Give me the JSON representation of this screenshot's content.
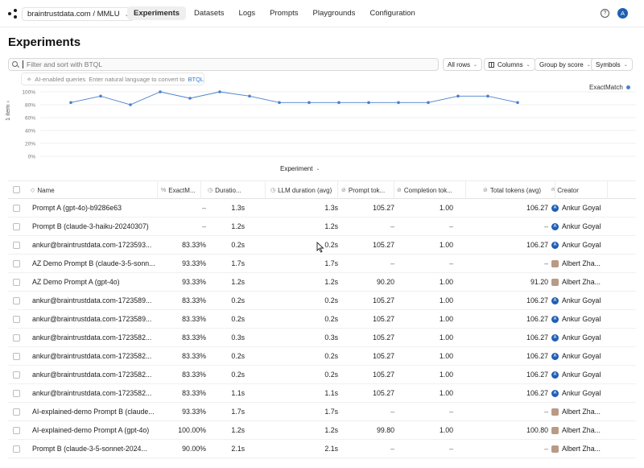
{
  "nav": {
    "org_label": "braintrustdata.com / MMLU",
    "tabs": [
      {
        "label": "Experiments",
        "active": true
      },
      {
        "label": "Datasets",
        "active": false
      },
      {
        "label": "Logs",
        "active": false
      },
      {
        "label": "Prompts",
        "active": false
      },
      {
        "label": "Playgrounds",
        "active": false
      },
      {
        "label": "Configuration",
        "active": false
      }
    ],
    "help_icon": "?",
    "avatar_initial": "A"
  },
  "page_title": "Experiments",
  "search": {
    "placeholder": "Filter and sort with BTQL",
    "hint_prefix": "AI-enabled queries",
    "hint_text": "Enter natural language to convert to",
    "hint_link": "BTQL"
  },
  "toolbar": {
    "all_rows": "All rows",
    "columns": "Columns",
    "group_by": "Group by score",
    "symbols": "Symbols"
  },
  "chart": {
    "y_axis_label": "1 item",
    "legend": "ExactMatch",
    "x_selector": "Experiment",
    "accent": "#4a80c8"
  },
  "chart_data": {
    "type": "line",
    "series": [
      {
        "name": "ExactMatch",
        "values": [
          83.33,
          93.33,
          80.0,
          100.0,
          90.0,
          100.0,
          93.33,
          83.33,
          83.33,
          83.33,
          83.33,
          83.33,
          83.33,
          93.33,
          93.33,
          83.33
        ]
      }
    ],
    "y_ticks": [
      "0%",
      "20%",
      "40%",
      "60%",
      "80%",
      "100%"
    ],
    "ylim": [
      0,
      100
    ]
  },
  "table": {
    "columns": [
      {
        "label": "Name",
        "icon": "tag-icon"
      },
      {
        "label": "ExactM...",
        "icon": "percent-icon"
      },
      {
        "label": "Duratio...",
        "icon": "clock-icon"
      },
      {
        "label": "LLM duration (avg)",
        "icon": "clock-icon"
      },
      {
        "label": "Prompt tok...",
        "icon": "token-icon"
      },
      {
        "label": "Completion tok...",
        "icon": "token-icon"
      },
      {
        "label": "Total tokens (avg)",
        "icon": "token-icon"
      },
      {
        "label": "Creator",
        "icon": "user-icon"
      }
    ],
    "rows": [
      {
        "name": "Prompt A (gpt-4o)-b9286e63",
        "exact": "–",
        "duration": "1.3s",
        "llm": "1.3s",
        "prompt": "105.27",
        "completion": "1.00",
        "total": "106.27",
        "creator": "Ankur Goyal",
        "avatar": "A",
        "photo": false
      },
      {
        "name": "Prompt B (claude-3-haiku-20240307)",
        "exact": "–",
        "duration": "1.2s",
        "llm": "1.2s",
        "prompt": "–",
        "completion": "–",
        "total": "–",
        "creator": "Ankur Goyal",
        "avatar": "A",
        "photo": false
      },
      {
        "name": "ankur@braintrustdata.com-1723593...",
        "exact": "83.33%",
        "duration": "0.2s",
        "llm": "0.2s",
        "prompt": "105.27",
        "completion": "1.00",
        "total": "106.27",
        "creator": "Ankur Goyal",
        "avatar": "A",
        "photo": false
      },
      {
        "name": "AZ Demo Prompt B (claude-3-5-sonn...",
        "exact": "93.33%",
        "duration": "1.7s",
        "llm": "1.7s",
        "prompt": "–",
        "completion": "–",
        "total": "–",
        "creator": "Albert Zha...",
        "avatar": "",
        "photo": true
      },
      {
        "name": "AZ Demo Prompt A (gpt-4o)",
        "exact": "93.33%",
        "duration": "1.2s",
        "llm": "1.2s",
        "prompt": "90.20",
        "completion": "1.00",
        "total": "91.20",
        "creator": "Albert Zha...",
        "avatar": "",
        "photo": true
      },
      {
        "name": "ankur@braintrustdata.com-1723589...",
        "exact": "83.33%",
        "duration": "0.2s",
        "llm": "0.2s",
        "prompt": "105.27",
        "completion": "1.00",
        "total": "106.27",
        "creator": "Ankur Goyal",
        "avatar": "A",
        "photo": false
      },
      {
        "name": "ankur@braintrustdata.com-1723589...",
        "exact": "83.33%",
        "duration": "0.2s",
        "llm": "0.2s",
        "prompt": "105.27",
        "completion": "1.00",
        "total": "106.27",
        "creator": "Ankur Goyal",
        "avatar": "A",
        "photo": false
      },
      {
        "name": "ankur@braintrustdata.com-1723582...",
        "exact": "83.33%",
        "duration": "0.3s",
        "llm": "0.3s",
        "prompt": "105.27",
        "completion": "1.00",
        "total": "106.27",
        "creator": "Ankur Goyal",
        "avatar": "A",
        "photo": false
      },
      {
        "name": "ankur@braintrustdata.com-1723582...",
        "exact": "83.33%",
        "duration": "0.2s",
        "llm": "0.2s",
        "prompt": "105.27",
        "completion": "1.00",
        "total": "106.27",
        "creator": "Ankur Goyal",
        "avatar": "A",
        "photo": false
      },
      {
        "name": "ankur@braintrustdata.com-1723582...",
        "exact": "83.33%",
        "duration": "0.2s",
        "llm": "0.2s",
        "prompt": "105.27",
        "completion": "1.00",
        "total": "106.27",
        "creator": "Ankur Goyal",
        "avatar": "A",
        "photo": false
      },
      {
        "name": "ankur@braintrustdata.com-1723582...",
        "exact": "83.33%",
        "duration": "1.1s",
        "llm": "1.1s",
        "prompt": "105.27",
        "completion": "1.00",
        "total": "106.27",
        "creator": "Ankur Goyal",
        "avatar": "A",
        "photo": false
      },
      {
        "name": "AI-explained-demo Prompt B (claude...",
        "exact": "93.33%",
        "duration": "1.7s",
        "llm": "1.7s",
        "prompt": "–",
        "completion": "–",
        "total": "–",
        "creator": "Albert Zha...",
        "avatar": "",
        "photo": true
      },
      {
        "name": "AI-explained-demo Prompt A (gpt-4o)",
        "exact": "100.00%",
        "duration": "1.2s",
        "llm": "1.2s",
        "prompt": "99.80",
        "completion": "1.00",
        "total": "100.80",
        "creator": "Albert Zha...",
        "avatar": "",
        "photo": true
      },
      {
        "name": "Prompt B (claude-3-5-sonnet-2024...",
        "exact": "90.00%",
        "duration": "2.1s",
        "llm": "2.1s",
        "prompt": "–",
        "completion": "–",
        "total": "–",
        "creator": "Albert Zha...",
        "avatar": "",
        "photo": true
      }
    ]
  }
}
